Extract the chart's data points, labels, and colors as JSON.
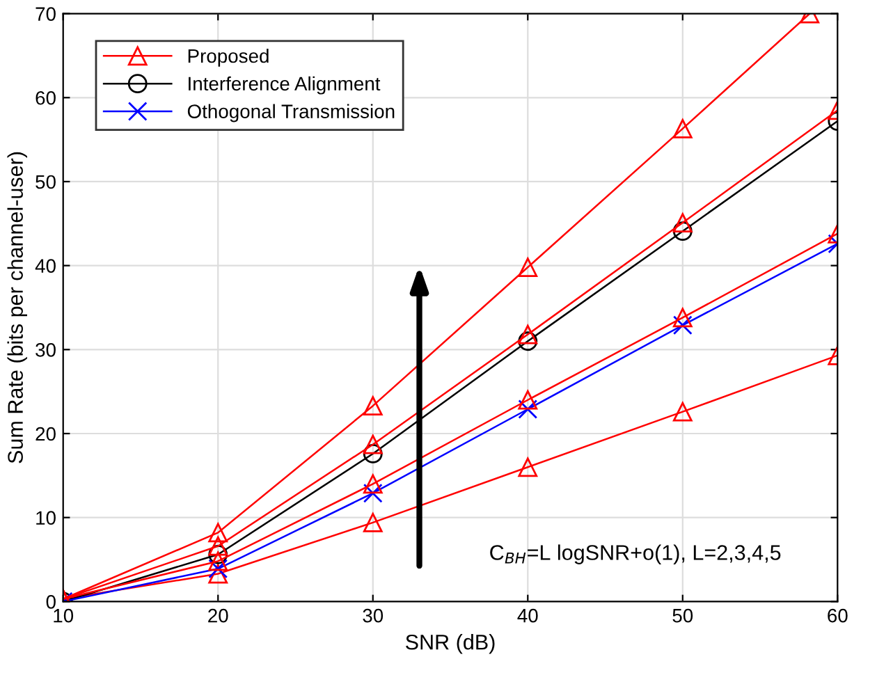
{
  "chart_data": {
    "type": "line",
    "xlabel": "SNR (dB)",
    "ylabel": "Sum Rate (bits per channel-user)",
    "xlim": [
      10,
      60
    ],
    "xticks": [
      10,
      20,
      30,
      40,
      50,
      60
    ],
    "ylim": [
      0,
      70
    ],
    "yticks": [
      0,
      10,
      20,
      30,
      40,
      50,
      60,
      70
    ],
    "grid": true,
    "legend": "top left",
    "line_style": "solid",
    "series": [
      {
        "name": "Proposed",
        "color": "#ff0000",
        "marker": "triangle",
        "x": [
          10,
          20,
          30,
          40,
          50,
          60
        ],
        "values": [
          0.3,
          3.3,
          9.4,
          16.0,
          22.6,
          29.3
        ]
      },
      {
        "name": "Interference Alignment",
        "color": "#000000",
        "marker": "circle",
        "x": [
          10,
          20,
          30,
          40,
          50,
          60
        ],
        "values": [
          0,
          5.6,
          17.6,
          31.0,
          44.1,
          57.2
        ]
      },
      {
        "name": "Othogonal Transmission",
        "color": "#0000ff",
        "marker": "cross",
        "x": [
          10,
          20,
          30,
          40,
          50,
          60
        ],
        "values": [
          0,
          3.9,
          12.9,
          22.9,
          32.9,
          42.6
        ]
      },
      {
        "color": "#ff0000",
        "marker": "triangle",
        "x": [
          10,
          20,
          30,
          40,
          50,
          60
        ],
        "values": [
          0.3,
          4.8,
          14.0,
          24.0,
          33.8,
          43.8
        ]
      },
      {
        "color": "#ff0000",
        "marker": "triangle",
        "x": [
          10,
          20,
          30,
          40,
          50,
          60
        ],
        "values": [
          0.3,
          6.6,
          18.7,
          31.8,
          45.1,
          58.5
        ]
      },
      {
        "color": "#ff0000",
        "marker": "triangle",
        "x": [
          10,
          20,
          30,
          40,
          50,
          58.2
        ],
        "values": [
          0.3,
          8.2,
          23.3,
          39.8,
          56.3,
          70
        ]
      }
    ],
    "annotations": [
      "C$_{BH}$=L logSNR+o(1), L=2,3,4,5"
    ]
  }
}
